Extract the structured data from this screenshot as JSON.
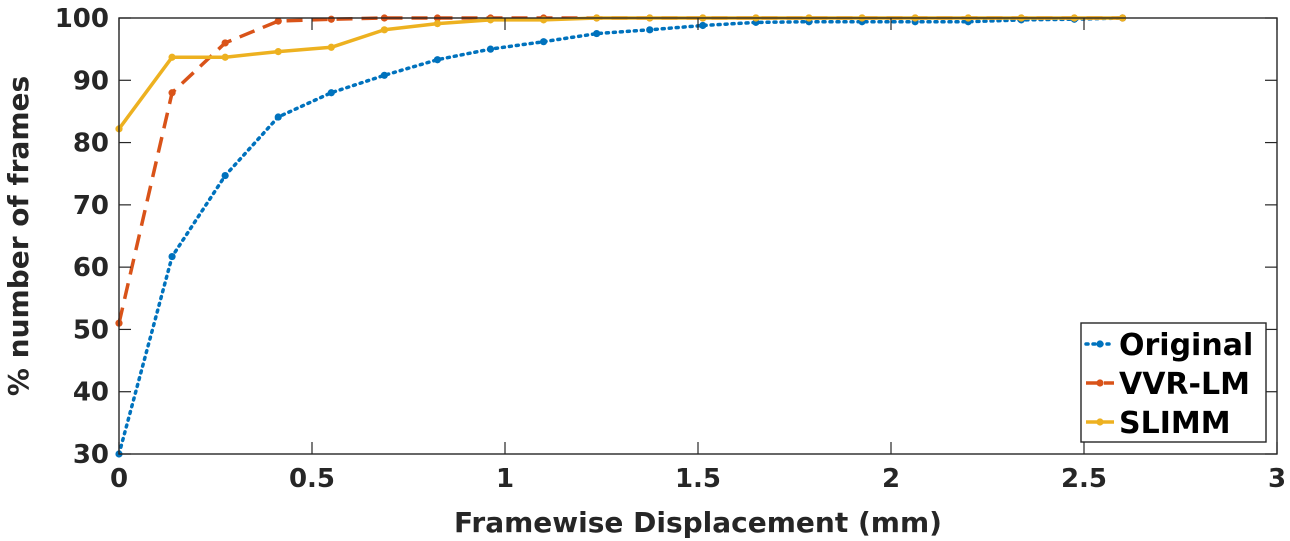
{
  "chart_data": {
    "type": "line",
    "xlabel": "Framewise Displacement (mm)",
    "ylabel": "% number of frames",
    "xlim": [
      0,
      3
    ],
    "ylim": [
      30,
      100
    ],
    "xticks": [
      0,
      0.5,
      1,
      1.5,
      2,
      2.5,
      3
    ],
    "xtick_labels": [
      "0",
      "0.5",
      "1",
      "1.5",
      "2",
      "2.5",
      "3"
    ],
    "yticks": [
      30,
      40,
      50,
      60,
      70,
      80,
      90,
      100
    ],
    "ytick_labels": [
      "30",
      "40",
      "50",
      "60",
      "70",
      "80",
      "90",
      "100"
    ],
    "grid": false,
    "legend_position": "bottom-right",
    "series": [
      {
        "name": "Original",
        "color": "#0072BD",
        "line_style": "dotted",
        "marker": "dot",
        "x": [
          0,
          0.1375,
          0.275,
          0.4125,
          0.55,
          0.6875,
          0.825,
          0.9625,
          1.1,
          1.2375,
          1.375,
          1.5125,
          1.65,
          1.7875,
          1.925,
          2.0625,
          2.2,
          2.3375,
          2.475,
          2.6
        ],
        "y": [
          30,
          61.7,
          74.7,
          84.1,
          88.0,
          90.8,
          93.3,
          95.0,
          96.2,
          97.5,
          98.1,
          98.8,
          99.3,
          99.4,
          99.4,
          99.4,
          99.4,
          99.7,
          99.8,
          100
        ]
      },
      {
        "name": "VVR-LM",
        "color": "#D95319",
        "line_style": "dashed",
        "marker": "dot",
        "x": [
          0,
          0.1375,
          0.275,
          0.4125,
          0.55,
          0.6875,
          0.825,
          0.9625,
          1.1,
          1.2375,
          1.375,
          1.5125,
          1.65,
          1.7875,
          1.925,
          2.0625,
          2.2,
          2.3375,
          2.475,
          2.6
        ],
        "y": [
          51,
          88.0,
          96.0,
          99.5,
          99.8,
          100,
          100,
          100,
          100,
          100,
          100,
          100,
          100,
          100,
          100,
          100,
          100,
          100,
          100,
          100
        ]
      },
      {
        "name": "SLIMM",
        "color": "#EDB120",
        "line_style": "solid",
        "marker": "dot",
        "x": [
          0,
          0.1375,
          0.275,
          0.4125,
          0.55,
          0.6875,
          0.825,
          0.9625,
          1.1,
          1.2375,
          1.375,
          1.5125,
          1.65,
          1.7875,
          1.925,
          2.0625,
          2.2,
          2.3375,
          2.475,
          2.6
        ],
        "y": [
          82.2,
          93.7,
          93.7,
          94.6,
          95.3,
          98.1,
          99.1,
          99.7,
          99.7,
          100,
          100,
          100,
          100,
          100,
          100,
          100,
          100,
          100,
          100,
          100
        ]
      }
    ]
  }
}
